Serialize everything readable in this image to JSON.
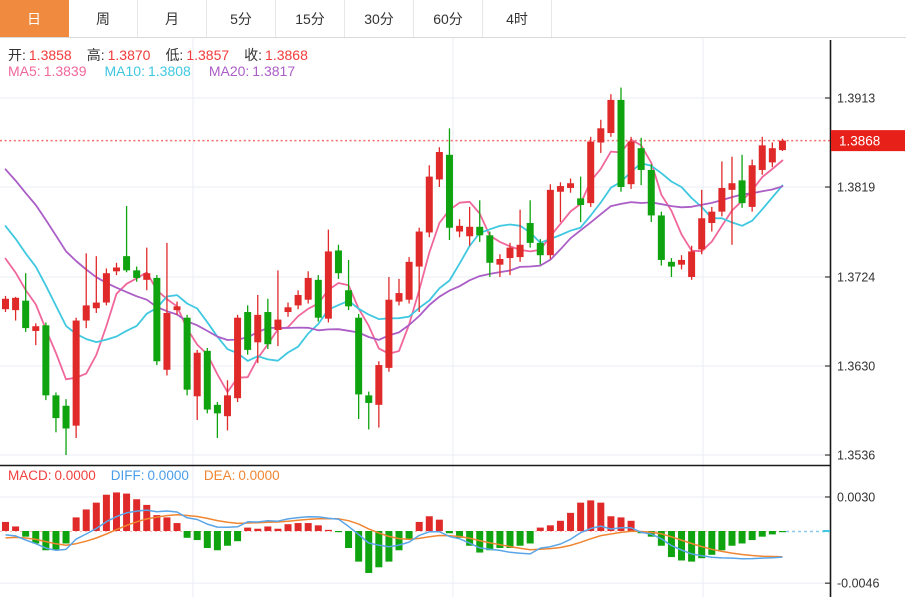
{
  "toolbar": {
    "tabs": [
      {
        "label": "日",
        "active": true
      },
      {
        "label": "周",
        "active": false
      },
      {
        "label": "月",
        "active": false
      },
      {
        "label": "5分",
        "active": false
      },
      {
        "label": "15分",
        "active": false
      },
      {
        "label": "30分",
        "active": false
      },
      {
        "label": "60分",
        "active": false
      },
      {
        "label": "4时",
        "active": false
      }
    ]
  },
  "legend": {
    "ohlc": [
      {
        "label": "开:",
        "value": "1.3858"
      },
      {
        "label": "高:",
        "value": "1.3870"
      },
      {
        "label": "低:",
        "value": "1.3857"
      },
      {
        "label": "收:",
        "value": "1.3868"
      }
    ],
    "ma": [
      {
        "label": "MA5:",
        "value": "1.3839"
      },
      {
        "label": "MA10:",
        "value": "1.3808"
      },
      {
        "label": "MA20:",
        "value": "1.3817"
      }
    ],
    "macd": [
      {
        "label": "MACD:",
        "value": "0.0000"
      },
      {
        "label": "DIFF:",
        "value": "0.0000"
      },
      {
        "label": "DEA:",
        "value": "0.0000"
      }
    ]
  },
  "price_axis": {
    "ticks": [
      "1.3913",
      "1.3819",
      "1.3724",
      "1.3630",
      "1.3536"
    ],
    "current": "1.3868"
  },
  "macd_axis": {
    "ticks": [
      "0.0030",
      "-0.0046"
    ]
  },
  "colors": {
    "up": "#e02a2a",
    "down": "#0fa40f",
    "ma5": "#f0679b",
    "ma10": "#3fc8e0",
    "ma20": "#ab5ec6",
    "diff_line": "#5aa5e8",
    "dea_line": "#f08632",
    "grid": "#e9eef5",
    "axis_line": "#1a1a1a",
    "axis_text": "#333333",
    "current_line": "#f56c6c",
    "current_box": "#e8201a",
    "zero_dash_red": "#f5b6b6",
    "zero_dash_blue": "#8cc8ee",
    "active_tab": "#ef8a3e"
  },
  "chart_data": {
    "type": "candlestick",
    "title": "",
    "timeframe_selected": "日",
    "convention": "red=up, green=down",
    "main_panel": {
      "y_ticks": [
        1.3913,
        1.3819,
        1.3724,
        1.363,
        1.3536
      ],
      "y_range": [
        1.3525,
        1.3977
      ],
      "current_price": 1.3868,
      "grid": true,
      "overlays_last_values": {
        "MA5": 1.3839,
        "MA10": 1.3808,
        "MA20": 1.3817
      },
      "candles_ohlc": [
        [
          1.369,
          1.3704,
          1.3687,
          1.3701
        ],
        [
          1.3689,
          1.3703,
          1.3678,
          1.3702
        ],
        [
          1.3699,
          1.3728,
          1.3666,
          1.367
        ],
        [
          1.3667,
          1.3675,
          1.3652,
          1.3672
        ],
        [
          1.3673,
          1.3676,
          1.3594,
          1.3599
        ],
        [
          1.3599,
          1.3602,
          1.356,
          1.3575
        ],
        [
          1.3588,
          1.3595,
          1.3536,
          1.3564
        ],
        [
          1.3567,
          1.3681,
          1.3554,
          1.3678
        ],
        [
          1.3678,
          1.3749,
          1.367,
          1.3694
        ],
        [
          1.3691,
          1.3746,
          1.3686,
          1.3697
        ],
        [
          1.3697,
          1.3733,
          1.3694,
          1.3728
        ],
        [
          1.373,
          1.3739,
          1.3726,
          1.3734
        ],
        [
          1.3746,
          1.3799,
          1.3729,
          1.3731
        ],
        [
          1.3731,
          1.3735,
          1.3719,
          1.3723
        ],
        [
          1.3721,
          1.3755,
          1.371,
          1.3728
        ],
        [
          1.3723,
          1.3726,
          1.3631,
          1.3635
        ],
        [
          1.3626,
          1.376,
          1.362,
          1.3686
        ],
        [
          1.3689,
          1.3698,
          1.3684,
          1.3693
        ],
        [
          1.3681,
          1.3684,
          1.3599,
          1.3605
        ],
        [
          1.3598,
          1.3647,
          1.3573,
          1.3644
        ],
        [
          1.3646,
          1.3649,
          1.358,
          1.3584
        ],
        [
          1.3589,
          1.3592,
          1.3554,
          1.358
        ],
        [
          1.3577,
          1.3615,
          1.3562,
          1.3599
        ],
        [
          1.3596,
          1.3684,
          1.3592,
          1.3681
        ],
        [
          1.3687,
          1.3694,
          1.3642,
          1.3647
        ],
        [
          1.3655,
          1.3705,
          1.3633,
          1.3684
        ],
        [
          1.3687,
          1.3701,
          1.3648,
          1.3653
        ],
        [
          1.3668,
          1.3731,
          1.3651,
          1.3679
        ],
        [
          1.3687,
          1.3697,
          1.3682,
          1.3692
        ],
        [
          1.3694,
          1.371,
          1.369,
          1.3705
        ],
        [
          1.37,
          1.373,
          1.3696,
          1.3723
        ],
        [
          1.3721,
          1.3726,
          1.3677,
          1.3681
        ],
        [
          1.368,
          1.3774,
          1.3676,
          1.3751
        ],
        [
          1.3752,
          1.3758,
          1.3722,
          1.3728
        ],
        [
          1.371,
          1.3742,
          1.3689,
          1.3693
        ],
        [
          1.3681,
          1.3685,
          1.3574,
          1.36
        ],
        [
          1.3599,
          1.3603,
          1.3563,
          1.3591
        ],
        [
          1.3589,
          1.3635,
          1.3565,
          1.3631
        ],
        [
          1.3628,
          1.3724,
          1.3624,
          1.37
        ],
        [
          1.3698,
          1.3722,
          1.3694,
          1.3707
        ],
        [
          1.37,
          1.3745,
          1.3696,
          1.374
        ],
        [
          1.3735,
          1.3776,
          1.3687,
          1.3772
        ],
        [
          1.3771,
          1.3842,
          1.3766,
          1.383
        ],
        [
          1.3827,
          1.3861,
          1.3819,
          1.3856
        ],
        [
          1.3853,
          1.3881,
          1.3763,
          1.3776
        ],
        [
          1.3772,
          1.3785,
          1.3766,
          1.3778
        ],
        [
          1.3767,
          1.3798,
          1.3757,
          1.3777
        ],
        [
          1.3777,
          1.3805,
          1.3761,
          1.3768
        ],
        [
          1.3768,
          1.3772,
          1.3724,
          1.3739
        ],
        [
          1.3737,
          1.3748,
          1.3724,
          1.3743
        ],
        [
          1.3744,
          1.376,
          1.3726,
          1.3755
        ],
        [
          1.3745,
          1.3795,
          1.374,
          1.3758
        ],
        [
          1.3781,
          1.3805,
          1.3755,
          1.376
        ],
        [
          1.376,
          1.3764,
          1.3737,
          1.3747
        ],
        [
          1.3747,
          1.3822,
          1.3743,
          1.3816
        ],
        [
          1.3814,
          1.3824,
          1.3782,
          1.382
        ],
        [
          1.3818,
          1.3828,
          1.3813,
          1.3823
        ],
        [
          1.3807,
          1.383,
          1.3782,
          1.38
        ],
        [
          1.3802,
          1.3872,
          1.3798,
          1.3867
        ],
        [
          1.3866,
          1.389,
          1.3855,
          1.3881
        ],
        [
          1.3876,
          1.3917,
          1.3872,
          1.3911
        ],
        [
          1.3911,
          1.3924,
          1.3814,
          1.3819
        ],
        [
          1.3822,
          1.3872,
          1.3817,
          1.3867
        ],
        [
          1.386,
          1.3871,
          1.3821,
          1.3837
        ],
        [
          1.3837,
          1.3843,
          1.3782,
          1.3789
        ],
        [
          1.3789,
          1.3793,
          1.3736,
          1.3742
        ],
        [
          1.374,
          1.3744,
          1.3724,
          1.3735
        ],
        [
          1.3737,
          1.3747,
          1.3732,
          1.3742
        ],
        [
          1.3724,
          1.3757,
          1.3721,
          1.3751
        ],
        [
          1.3753,
          1.3816,
          1.3748,
          1.3786
        ],
        [
          1.3781,
          1.3798,
          1.3772,
          1.3793
        ],
        [
          1.3793,
          1.3846,
          1.3788,
          1.3818
        ],
        [
          1.3816,
          1.3851,
          1.3758,
          1.3823
        ],
        [
          1.3826,
          1.3853,
          1.3797,
          1.3802
        ],
        [
          1.3798,
          1.3848,
          1.3793,
          1.3842
        ],
        [
          1.3837,
          1.3872,
          1.3832,
          1.3863
        ],
        [
          1.3845,
          1.3866,
          1.384,
          1.386
        ],
        [
          1.3858,
          1.387,
          1.3857,
          1.3868
        ]
      ],
      "ma_seed_closes": [
        1.395,
        1.3942,
        1.3933,
        1.3924,
        1.3915,
        1.3905,
        1.3895,
        1.3884,
        1.3872,
        1.386,
        1.3848,
        1.3836,
        1.3824,
        1.3812,
        1.38,
        1.3788,
        1.3776,
        1.3762,
        1.3748,
        1.373
      ]
    },
    "macd_panel": {
      "y_ticks": [
        0.003,
        -0.0046
      ],
      "last_values": {
        "MACD": 0.0,
        "DIFF": 0.0,
        "DEA": 0.0
      },
      "histogram": [
        0.0008,
        0.0004,
        -0.0005,
        -0.0011,
        -0.0017,
        -0.0017,
        -0.0011,
        0.0012,
        0.0019,
        0.0025,
        0.0032,
        0.0034,
        0.0033,
        0.0028,
        0.0023,
        0.0014,
        0.0012,
        0.0007,
        -0.0006,
        -0.0008,
        -0.0015,
        -0.0017,
        -0.0013,
        -0.0009,
        0.0003,
        0.0002,
        0.0004,
        0.0002,
        0.0006,
        0.0007,
        0.0007,
        0.0005,
        0.0001,
        -0.0001,
        -0.0015,
        -0.0027,
        -0.0037,
        -0.0032,
        -0.0027,
        -0.0017,
        -0.0007,
        0.0008,
        0.0013,
        0.001,
        -0.0002,
        -0.0006,
        -0.0013,
        -0.0019,
        -0.0017,
        -0.0015,
        -0.0015,
        -0.0013,
        -0.0011,
        0.0003,
        0.0005,
        0.0009,
        0.0016,
        0.0025,
        0.0027,
        0.0025,
        0.0013,
        0.0012,
        0.0009,
        -0.0002,
        -0.0005,
        -0.0013,
        -0.0023,
        -0.0026,
        -0.0027,
        -0.0024,
        -0.0021,
        -0.0017,
        -0.0013,
        -0.0011,
        -0.0008,
        -0.0005,
        -0.0003,
        -0.0001
      ]
    }
  }
}
